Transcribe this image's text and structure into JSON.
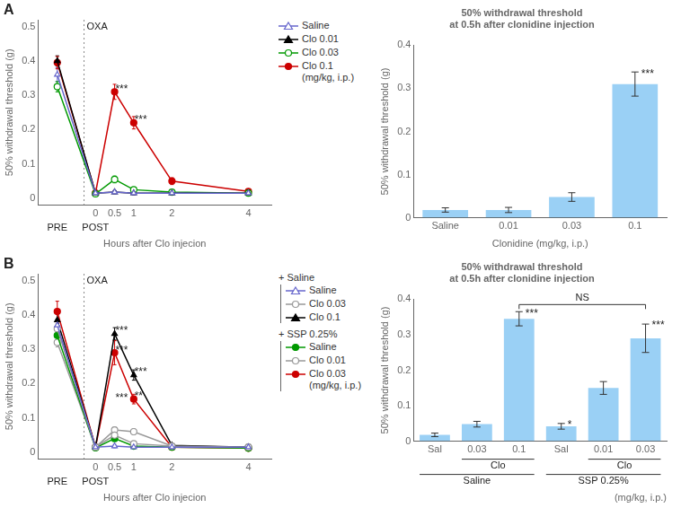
{
  "chart_data": [
    {
      "type": "line",
      "panel_label": "A",
      "x": [
        -1,
        0,
        0.5,
        1,
        2,
        4
      ],
      "xlim": [
        -1.5,
        4.6
      ],
      "xticks": [
        0,
        0.5,
        1,
        2,
        4
      ],
      "ylim": [
        -0.02,
        0.52
      ],
      "yticks": [
        0,
        0.1,
        0.2,
        0.3,
        0.4,
        0.5
      ],
      "xlabel": "Hours after Clo injecion",
      "ylabel": "50% withdrawal threshold (g)",
      "grid": false,
      "legend": "right",
      "series": [
        {
          "name": "Saline",
          "color": "#6666cc",
          "marker": "triangle-open",
          "values": [
            0.36,
            0.015,
            0.018,
            0.015,
            0.015,
            0.015
          ],
          "errors": [
            0.02,
            0.005,
            0.005,
            0.005,
            0.005,
            0.005
          ]
        },
        {
          "name": "Clo 0.01",
          "color": "#000000",
          "marker": "triangle",
          "values": [
            0.4,
            0.015,
            0.018,
            0.015,
            0.015,
            0.015
          ],
          "errors": [
            0.015,
            0.004,
            0.004,
            0.004,
            0.004,
            0.004
          ]
        },
        {
          "name": "Clo 0.03",
          "color": "#009900",
          "marker": "circle-open",
          "values": [
            0.325,
            0.013,
            0.055,
            0.025,
            0.018,
            0.015
          ],
          "errors": [
            0.015,
            0.004,
            0.01,
            0.006,
            0.005,
            0.004
          ]
        },
        {
          "name": "Clo 0.1\n(mg/kg, i.p.)",
          "color": "#cc0000",
          "marker": "circle",
          "values": [
            0.395,
            0.015,
            0.31,
            0.22,
            0.05,
            0.02
          ],
          "errors": [
            0.018,
            0.004,
            0.022,
            0.018,
            0.01,
            0.005
          ]
        }
      ],
      "vlines": [
        {
          "x": -0.3,
          "label": "OXA"
        }
      ],
      "annotations": [
        {
          "text": "PRE",
          "x": -1
        },
        {
          "text": "POST",
          "x": 0
        },
        {
          "text": "***",
          "x": 0.52,
          "y": 0.313
        },
        {
          "text": "***",
          "x": 1.02,
          "y": 0.223
        }
      ]
    },
    {
      "type": "bar",
      "title": "50% withdrawal threshold\nat 0.5h after clonidine injection",
      "categories": [
        "Saline",
        "0.01",
        "0.03",
        "0.1"
      ],
      "values": [
        0.018,
        0.018,
        0.048,
        0.31
      ],
      "errors": [
        0.005,
        0.006,
        0.01,
        0.028
      ],
      "significance": [
        null,
        null,
        null,
        "***"
      ],
      "ylim": [
        0,
        0.4
      ],
      "yticks": [
        0,
        0.1,
        0.2,
        0.3,
        0.4
      ],
      "ylabel": "50% withdrawal threshold (g)",
      "xlabel": "Clonidine (mg/kg, i.p.)",
      "grid": false
    },
    {
      "type": "line",
      "panel_label": "B",
      "x": [
        -1,
        0,
        0.5,
        1,
        2,
        4
      ],
      "xlim": [
        -1.5,
        4.6
      ],
      "xticks": [
        0,
        0.5,
        1,
        2,
        4
      ],
      "ylim": [
        -0.02,
        0.52
      ],
      "yticks": [
        0,
        0.1,
        0.2,
        0.3,
        0.4,
        0.5
      ],
      "xlabel": "Hours after Clo injecion",
      "ylabel": "50% withdrawal threshold (g)",
      "grid": false,
      "legend": "right",
      "series": [
        {
          "name": "Saline",
          "group": "+ Saline",
          "color": "#6666cc",
          "marker": "triangle-open",
          "values": [
            0.37,
            0.015,
            0.018,
            0.015,
            0.015,
            0.015
          ],
          "errors": [
            0.018,
            0.004,
            0.005,
            0.004,
            0.004,
            0.004
          ]
        },
        {
          "name": "Clo 0.03",
          "group": "+ Saline",
          "color": "#999999",
          "marker": "circle-open",
          "values": [
            0.36,
            0.015,
            0.05,
            0.025,
            0.018,
            0.015
          ],
          "errors": [
            0.015,
            0.004,
            0.008,
            0.006,
            0.004,
            0.004
          ]
        },
        {
          "name": "Clo 0.1",
          "group": "+ Saline",
          "color": "#000000",
          "marker": "triangle",
          "values": [
            0.385,
            0.015,
            0.345,
            0.225,
            0.02,
            0.015
          ],
          "errors": [
            0.018,
            0.004,
            0.018,
            0.015,
            0.004,
            0.004
          ]
        },
        {
          "name": "Saline",
          "group": "+ SSP 0.25%",
          "color": "#009900",
          "marker": "circle",
          "values": [
            0.34,
            0.013,
            0.04,
            0.018,
            0.015,
            0.012
          ],
          "errors": [
            0.013,
            0.004,
            0.007,
            0.004,
            0.004,
            0.004
          ]
        },
        {
          "name": "Clo 0.01",
          "group": "+ SSP 0.25%",
          "color": "#999999",
          "marker": "circle-open",
          "values": [
            0.32,
            0.015,
            0.065,
            0.06,
            0.018,
            0.015
          ],
          "errors": [
            0.013,
            0.004,
            0.009,
            0.009,
            0.004,
            0.004
          ]
        },
        {
          "name": "Clo 0.03\n(mg/kg, i.p.)",
          "group": "+ SSP 0.25%",
          "color": "#cc0000",
          "marker": "circle",
          "values": [
            0.41,
            0.015,
            0.29,
            0.155,
            0.015,
            0.012
          ],
          "errors": [
            0.03,
            0.004,
            0.035,
            0.014,
            0.004,
            0.004
          ]
        }
      ],
      "vlines": [
        {
          "x": -0.3,
          "label": "OXA"
        }
      ],
      "annotations": [
        {
          "text": "PRE",
          "x": -1
        },
        {
          "text": "POST",
          "x": 0
        },
        {
          "text": "***",
          "x": 0.52,
          "y": 0.348
        },
        {
          "text": "***",
          "x": 0.52,
          "y": 0.292
        },
        {
          "text": "***",
          "x": 0.52,
          "y": 0.152
        },
        {
          "text": "***",
          "x": 1.02,
          "y": 0.228
        },
        {
          "text": "**",
          "x": 1.02,
          "y": 0.157
        }
      ]
    },
    {
      "type": "bar",
      "title": "50% withdrawal threshold\nat 0.5h after clonidine injection",
      "categories": [
        "Sal",
        "0.03",
        "0.1",
        "Sal",
        "0.01",
        "0.03"
      ],
      "values": [
        0.018,
        0.048,
        0.345,
        0.042,
        0.15,
        0.29
      ],
      "errors": [
        0.005,
        0.008,
        0.02,
        0.008,
        0.018,
        0.04
      ],
      "significance": [
        null,
        null,
        "***",
        "*",
        null,
        "***"
      ],
      "brackets": [
        {
          "text": "NS",
          "from": 2,
          "to": 5,
          "y": 0.385
        }
      ],
      "category_groups": [
        {
          "label": "Saline",
          "categories": [
            "Sal",
            "0.03",
            "0.1"
          ],
          "subgroup": {
            "label": "Clo",
            "categories": [
              "0.03",
              "0.1"
            ]
          }
        },
        {
          "label": "SSP 0.25%",
          "categories": [
            "Sal",
            "0.01",
            "0.03"
          ],
          "subgroup": {
            "label": "Clo",
            "categories": [
              "0.01",
              "0.03"
            ]
          }
        }
      ],
      "ylim": [
        0,
        0.4
      ],
      "yticks": [
        0,
        0.1,
        0.2,
        0.3,
        0.4
      ],
      "ylabel": "50% withdrawal threshold (g)",
      "xlabel": "(mg/kg, i.p.)",
      "grid": false
    }
  ]
}
